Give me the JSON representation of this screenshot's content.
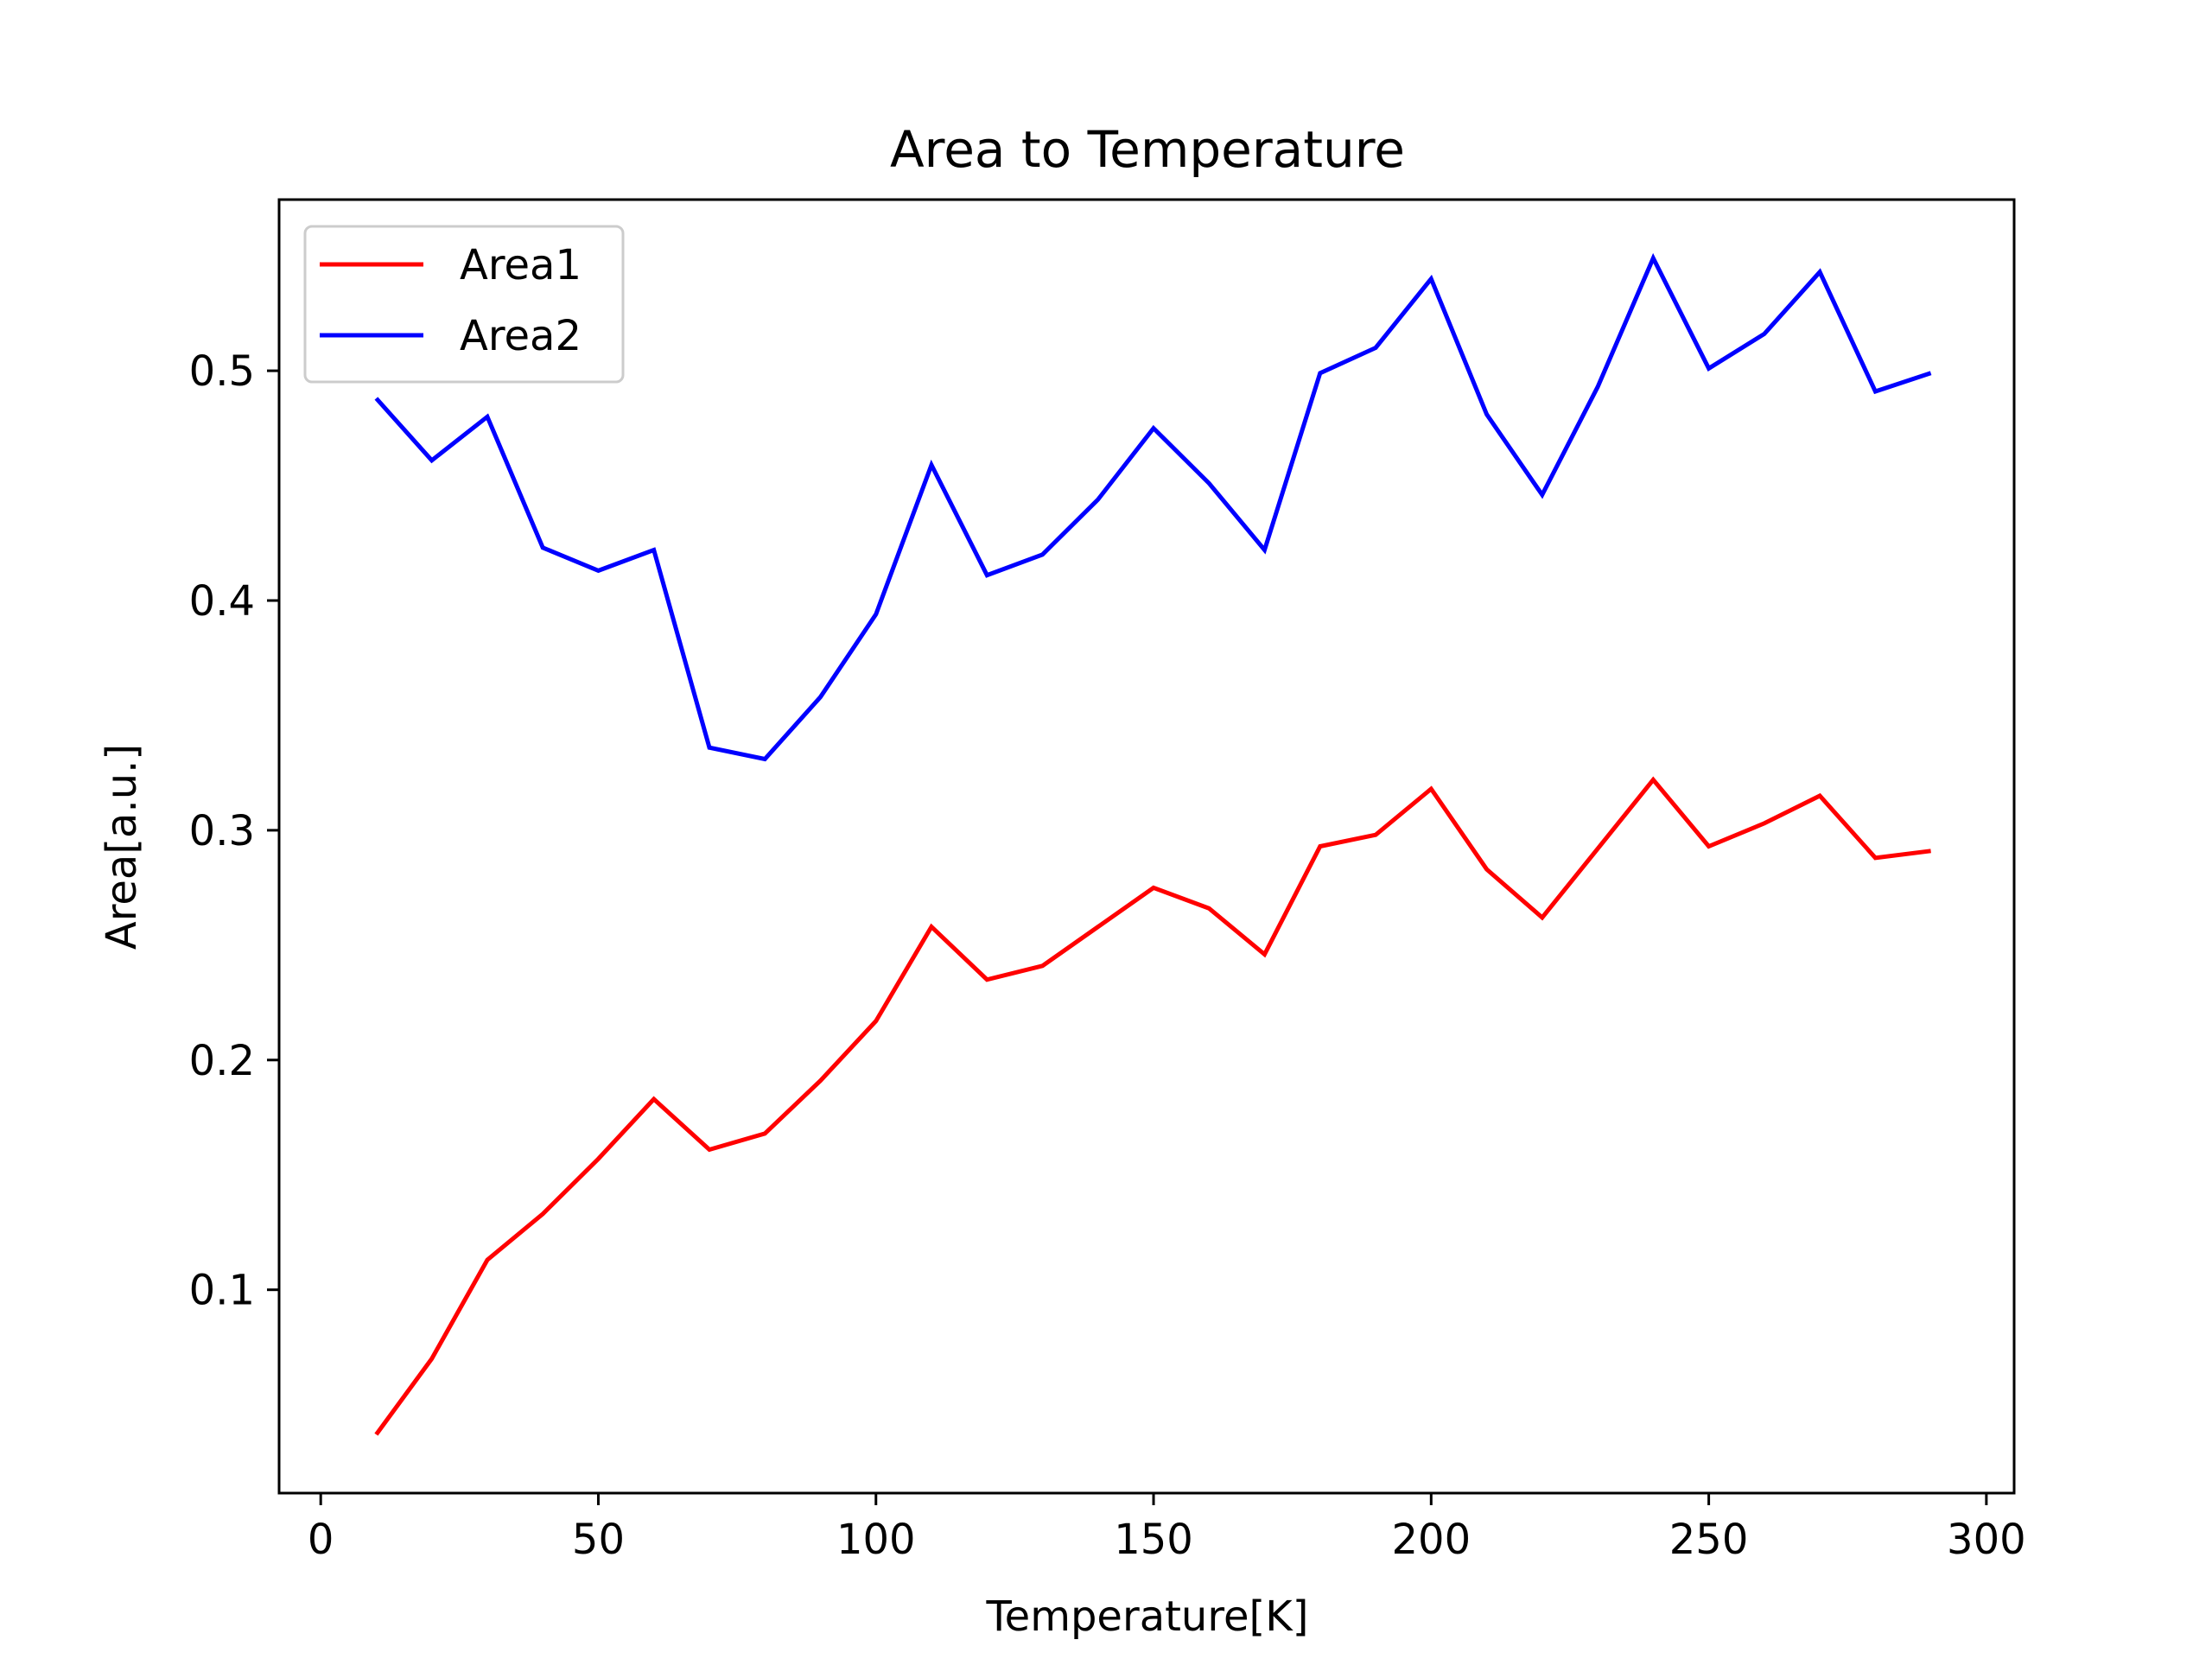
{
  "chart_data": {
    "type": "line",
    "title": "Area to Temperature",
    "xlabel": "Temperature[K]",
    "ylabel": "Area[a.u.]",
    "xlim": [
      -7.5,
      305
    ],
    "ylim": [
      0.0115,
      0.5745
    ],
    "xticks": [
      0,
      50,
      100,
      150,
      200,
      250,
      300
    ],
    "yticks": [
      0.1,
      0.2,
      0.3,
      0.4,
      0.5
    ],
    "ytick_labels": [
      "0.1",
      "0.2",
      "0.3",
      "0.4",
      "0.5"
    ],
    "grid": false,
    "legend_position": "upper-left",
    "x": [
      10,
      20,
      30,
      40,
      50,
      60,
      70,
      80,
      90,
      100,
      110,
      120,
      130,
      140,
      150,
      160,
      170,
      180,
      190,
      200,
      210,
      220,
      230,
      240,
      250,
      260,
      270,
      280,
      290
    ],
    "series": [
      {
        "name": "Area1",
        "color": "#ff0000",
        "values": [
          0.037,
          0.07,
          0.113,
          0.133,
          0.157,
          0.183,
          0.161,
          0.168,
          0.191,
          0.217,
          0.258,
          0.235,
          0.241,
          0.258,
          0.275,
          0.266,
          0.246,
          0.293,
          0.298,
          0.318,
          0.283,
          0.262,
          0.292,
          0.322,
          0.293,
          0.303,
          0.315,
          0.288,
          0.291
        ]
      },
      {
        "name": "Area2",
        "color": "#0000ff",
        "values": [
          0.488,
          0.461,
          0.48,
          0.423,
          0.413,
          0.422,
          0.336,
          0.331,
          0.358,
          0.394,
          0.459,
          0.411,
          0.42,
          0.444,
          0.475,
          0.451,
          0.422,
          0.499,
          0.51,
          0.54,
          0.481,
          0.446,
          0.493,
          0.549,
          0.501,
          0.516,
          0.543,
          0.491,
          0.499
        ]
      }
    ]
  }
}
